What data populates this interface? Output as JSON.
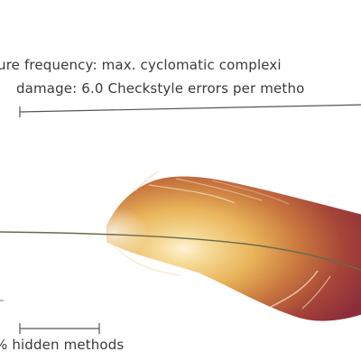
{
  "feather": {
    "caption_line_1": "ture frequency: max. cyclomatic complexi",
    "caption_line_2": "damage: 6.0 Checkstyle errors per metho",
    "caption_line_3": "% hidden methods"
  },
  "colors": {
    "vane_core": "#f2c86e",
    "vane_edge": "#96303c",
    "rachis": "#6c6a4a",
    "scale_rule": "#555555",
    "text": "#3a3a3a"
  }
}
